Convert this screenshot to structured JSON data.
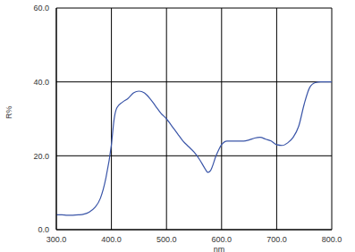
{
  "chart_data": {
    "type": "line",
    "xlabel": "nm",
    "ylabel": "R%",
    "x": [
      300,
      310,
      320,
      330,
      340,
      350,
      360,
      370,
      380,
      390,
      400,
      405,
      410,
      420,
      430,
      440,
      450,
      460,
      470,
      480,
      490,
      500,
      510,
      520,
      530,
      540,
      550,
      560,
      570,
      575,
      580,
      590,
      600,
      610,
      620,
      630,
      640,
      650,
      660,
      670,
      680,
      690,
      700,
      710,
      720,
      730,
      740,
      750,
      760,
      770,
      780,
      790,
      800
    ],
    "values": [
      4.0,
      4.0,
      3.9,
      3.9,
      4.0,
      4.2,
      4.8,
      6.0,
      8.5,
      14.0,
      23.0,
      30.0,
      33.0,
      34.5,
      35.5,
      37.0,
      37.5,
      37.0,
      35.5,
      33.5,
      31.5,
      30.0,
      28.0,
      26.0,
      24.0,
      22.5,
      21.0,
      19.0,
      16.5,
      15.5,
      16.0,
      20.0,
      23.0,
      24.0,
      24.0,
      24.0,
      24.0,
      24.3,
      24.8,
      25.0,
      24.5,
      24.0,
      23.0,
      22.8,
      23.5,
      25.0,
      28.0,
      34.0,
      38.5,
      39.8,
      40.0,
      40.0,
      40.0
    ],
    "color": "#3a55a8",
    "xlim": [
      300,
      800
    ],
    "xticks": [
      {
        "value": 300,
        "label": "300.0"
      },
      {
        "value": 400,
        "label": "400.0"
      },
      {
        "value": 500,
        "label": "500.0"
      },
      {
        "value": 600,
        "label": "600.0"
      },
      {
        "value": 700,
        "label": "700.0"
      },
      {
        "value": 800,
        "label": "800.0"
      }
    ],
    "ylim": [
      0,
      60
    ],
    "yticks": [
      {
        "value": 0,
        "label": "0.0"
      },
      {
        "value": 20,
        "label": "20.0"
      },
      {
        "value": 40,
        "label": "40.0"
      },
      {
        "value": 60,
        "label": "60.0"
      }
    ],
    "grid": true
  }
}
